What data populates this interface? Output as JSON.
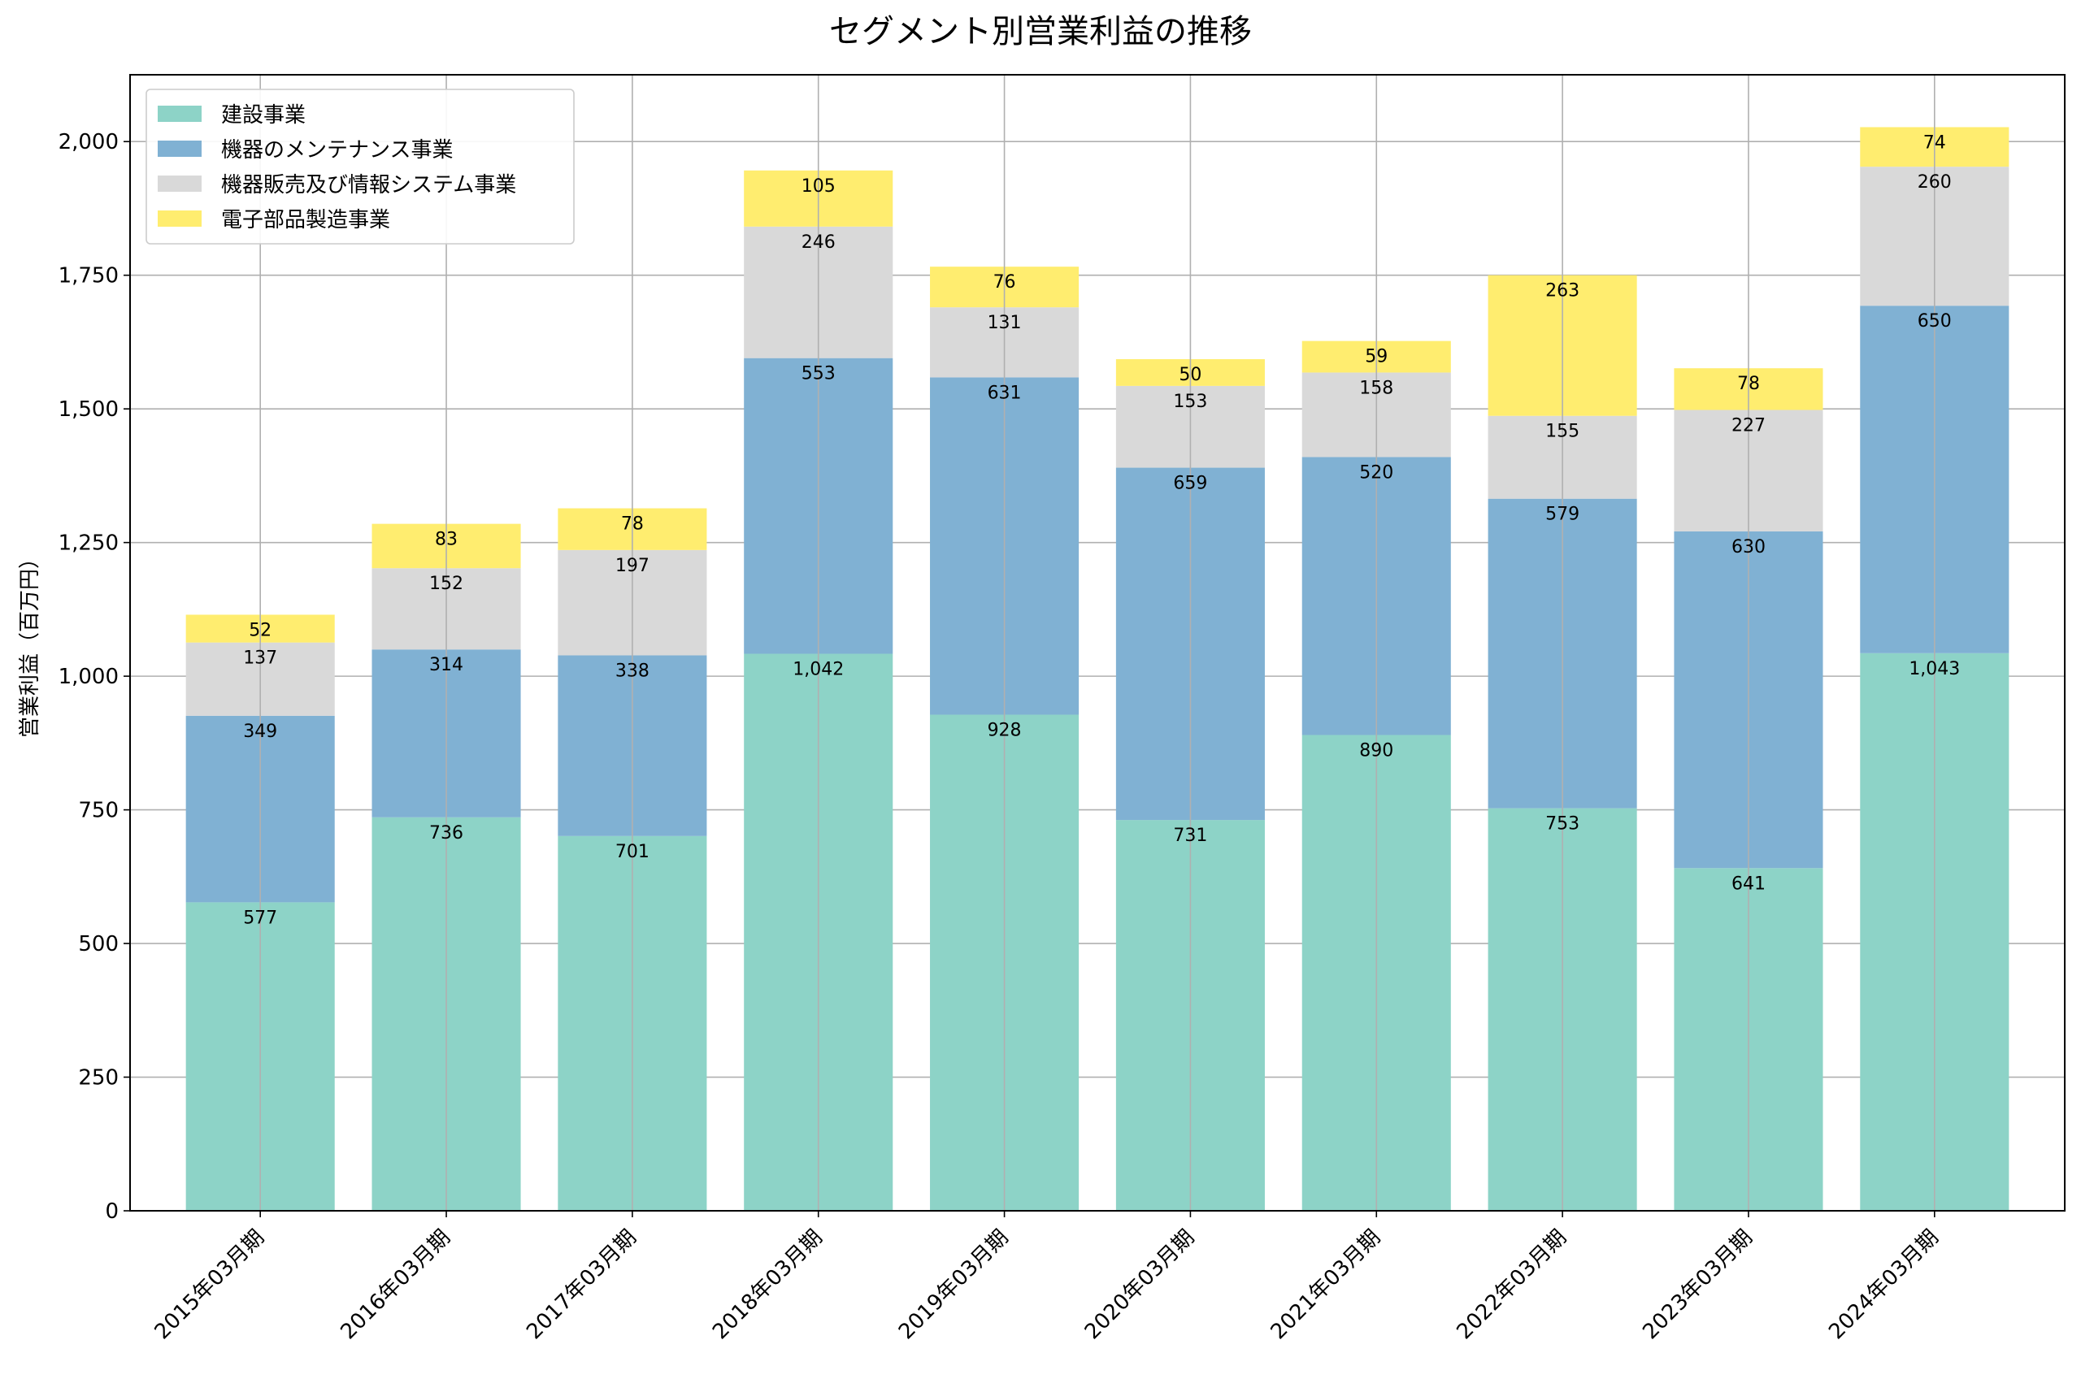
{
  "chart_data": {
    "type": "bar",
    "stacked": true,
    "title": "セグメント別営業利益の推移",
    "xlabel": "",
    "ylabel": "営業利益（百万円）",
    "ylim": [
      0,
      2125
    ],
    "yticks": [
      0,
      250,
      500,
      750,
      1000,
      1250,
      1500,
      1750,
      2000
    ],
    "ytick_labels": [
      "0",
      "250",
      "500",
      "750",
      "1,000",
      "1,250",
      "1,500",
      "1,750",
      "2,000"
    ],
    "grid": true,
    "legend_position": "top-left",
    "categories": [
      "2015年03月期",
      "2016年03月期",
      "2017年03月期",
      "2018年03月期",
      "2019年03月期",
      "2020年03月期",
      "2021年03月期",
      "2022年03月期",
      "2023年03月期",
      "2024年03月期"
    ],
    "series": [
      {
        "name": "建設事業",
        "color": "#8dd3c7",
        "values": [
          577,
          736,
          701,
          1042,
          928,
          731,
          890,
          753,
          641,
          1043
        ],
        "labels": [
          "577",
          "736",
          "701",
          "1,042",
          "928",
          "731",
          "890",
          "753",
          "641",
          "1,043"
        ]
      },
      {
        "name": "機器のメンテナンス事業",
        "color": "#80b1d3",
        "values": [
          349,
          314,
          338,
          553,
          631,
          659,
          520,
          579,
          630,
          650
        ],
        "labels": [
          "349",
          "314",
          "338",
          "553",
          "631",
          "659",
          "520",
          "579",
          "630",
          "650"
        ]
      },
      {
        "name": "機器販売及び情報システム事業",
        "color": "#d9d9d9",
        "values": [
          137,
          152,
          197,
          246,
          131,
          153,
          158,
          155,
          227,
          260
        ],
        "labels": [
          "137",
          "152",
          "197",
          "246",
          "131",
          "153",
          "158",
          "155",
          "227",
          "260"
        ]
      },
      {
        "name": "電子部品製造事業",
        "color": "#ffed6f",
        "values": [
          52,
          83,
          78,
          105,
          76,
          50,
          59,
          263,
          78,
          74
        ],
        "labels": [
          "52",
          "83",
          "78",
          "105",
          "76",
          "50",
          "59",
          "263",
          "78",
          "74"
        ]
      }
    ]
  }
}
